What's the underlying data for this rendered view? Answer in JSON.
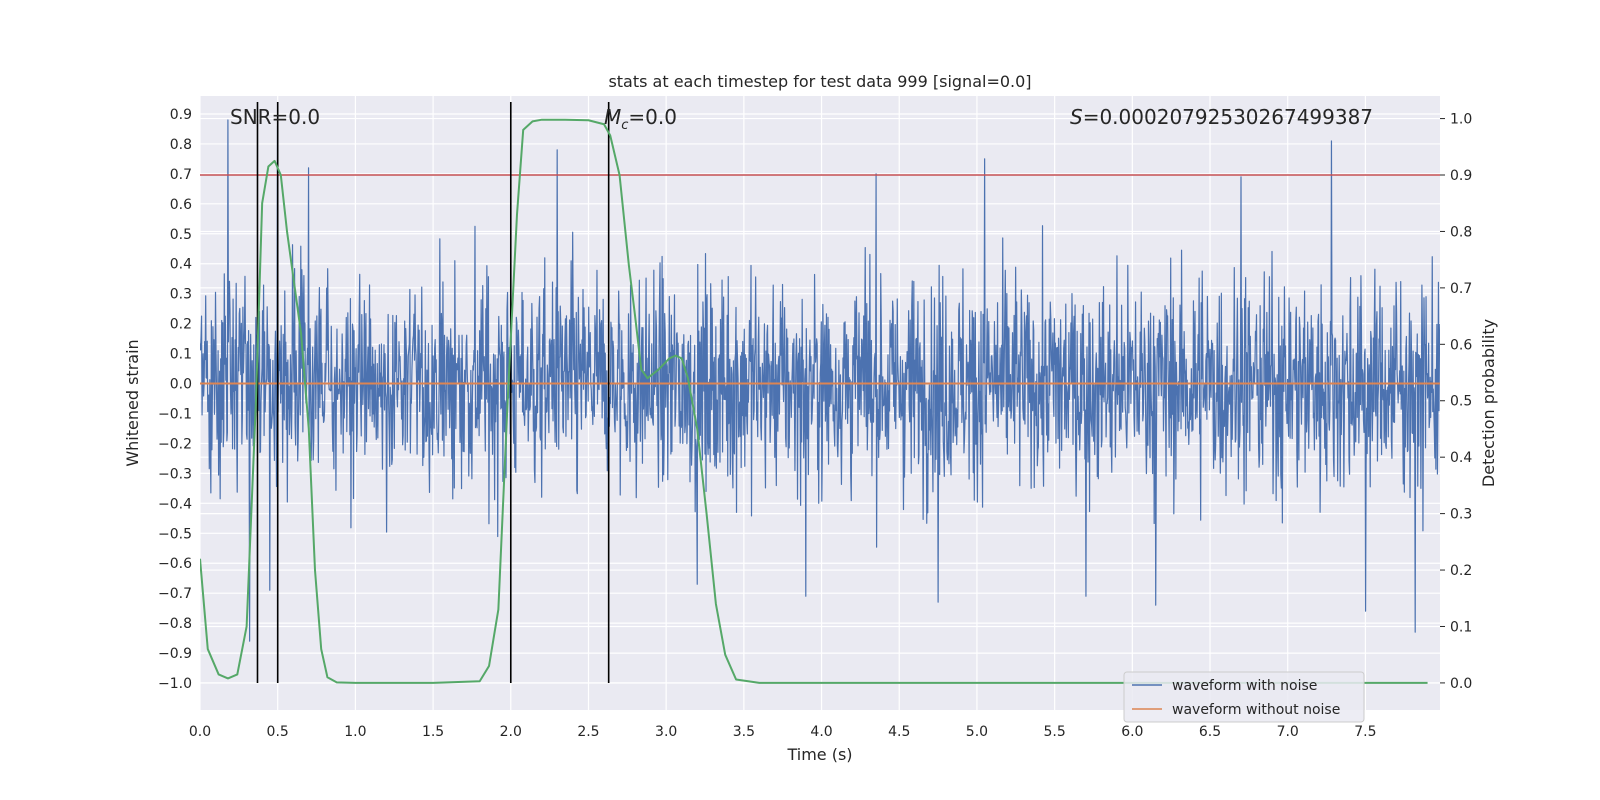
{
  "chart_data": {
    "type": "line",
    "title": "stats at each timestep for test data 999 [signal=0.0]",
    "xlabel": "Time (s)",
    "ylabel": "Whitened strain",
    "y2label": "Detection probability",
    "xlim": [
      0.0,
      7.98
    ],
    "ylim": [
      -1.09,
      0.96
    ],
    "y2lim": [
      -0.048,
      1.04
    ],
    "x_ticks": [
      0.0,
      0.5,
      1.0,
      1.5,
      2.0,
      2.5,
      3.0,
      3.5,
      4.0,
      4.5,
      5.0,
      5.5,
      6.0,
      6.5,
      7.0,
      7.5
    ],
    "y_ticks": [
      0.9,
      0.8,
      0.7,
      0.6,
      0.5,
      0.4,
      0.3,
      0.2,
      0.1,
      0.0,
      -0.1,
      -0.2,
      -0.3,
      -0.4,
      -0.5,
      -0.6,
      -0.7,
      -0.8,
      -0.9,
      -1.0
    ],
    "y2_ticks": [
      1.0,
      0.9,
      0.8,
      0.7,
      0.6,
      0.5,
      0.4,
      0.3,
      0.2,
      0.1,
      0.0
    ],
    "grid": true,
    "legend_position": "lower-right",
    "annotations": {
      "snr": "SNR=0.0",
      "mc": "=0.0",
      "mc_symbol": "M",
      "mc_sub": "c",
      "s": "=0.00020792530267499387",
      "s_symbol": "S"
    },
    "series": [
      {
        "name": "waveform with noise",
        "color": "#4c72b0",
        "kind": "noise",
        "envelope_typical": 0.45,
        "x_range": [
          0.0,
          7.98
        ],
        "peak_points": [
          [
            0.18,
            0.88
          ],
          [
            0.5,
            0.86
          ],
          [
            0.7,
            -1.0
          ],
          [
            0.32,
            -0.86
          ],
          [
            0.45,
            -0.69
          ],
          [
            0.7,
            0.72
          ],
          [
            2.3,
            0.78
          ],
          [
            3.2,
            -0.67
          ],
          [
            3.9,
            -0.71
          ],
          [
            4.75,
            -0.73
          ],
          [
            5.05,
            0.75
          ],
          [
            5.7,
            -0.71
          ],
          [
            6.15,
            -0.74
          ],
          [
            7.28,
            0.81
          ],
          [
            7.5,
            -0.76
          ],
          [
            7.82,
            -0.83
          ],
          [
            6.7,
            0.69
          ],
          [
            4.35,
            0.7
          ]
        ]
      },
      {
        "name": "waveform without noise",
        "color": "#dd8452",
        "kind": "flat",
        "value": 0.0
      },
      {
        "name": "",
        "color": "#55a868",
        "axis": "right",
        "x": [
          0.0,
          0.05,
          0.12,
          0.18,
          0.24,
          0.3,
          0.36,
          0.4,
          0.44,
          0.48,
          0.52,
          0.56,
          0.6,
          0.65,
          0.7,
          0.74,
          0.78,
          0.82,
          0.88,
          1.0,
          1.5,
          1.8,
          1.86,
          1.92,
          1.98,
          2.04,
          2.08,
          2.14,
          2.2,
          2.35,
          2.5,
          2.6,
          2.64,
          2.7,
          2.76,
          2.8,
          2.84,
          2.88,
          2.95,
          3.02,
          3.06,
          3.1,
          3.14,
          3.2,
          3.26,
          3.32,
          3.38,
          3.45,
          3.6,
          5.0,
          7.9
        ],
        "values": [
          0.22,
          0.06,
          0.015,
          0.008,
          0.015,
          0.1,
          0.5,
          0.85,
          0.915,
          0.925,
          0.9,
          0.8,
          0.72,
          0.62,
          0.45,
          0.2,
          0.06,
          0.01,
          0.001,
          0.0,
          0.0,
          0.003,
          0.03,
          0.13,
          0.5,
          0.83,
          0.98,
          0.995,
          0.998,
          0.998,
          0.997,
          0.99,
          0.97,
          0.9,
          0.74,
          0.65,
          0.555,
          0.54,
          0.555,
          0.575,
          0.58,
          0.575,
          0.54,
          0.45,
          0.3,
          0.14,
          0.05,
          0.006,
          0.0,
          0.0,
          0.0
        ]
      }
    ],
    "hlines": [
      {
        "value": 0.9,
        "axis": "right",
        "color": "#c44e52"
      }
    ],
    "vlines": [
      0.37,
      0.5,
      2.0,
      2.63
    ]
  }
}
